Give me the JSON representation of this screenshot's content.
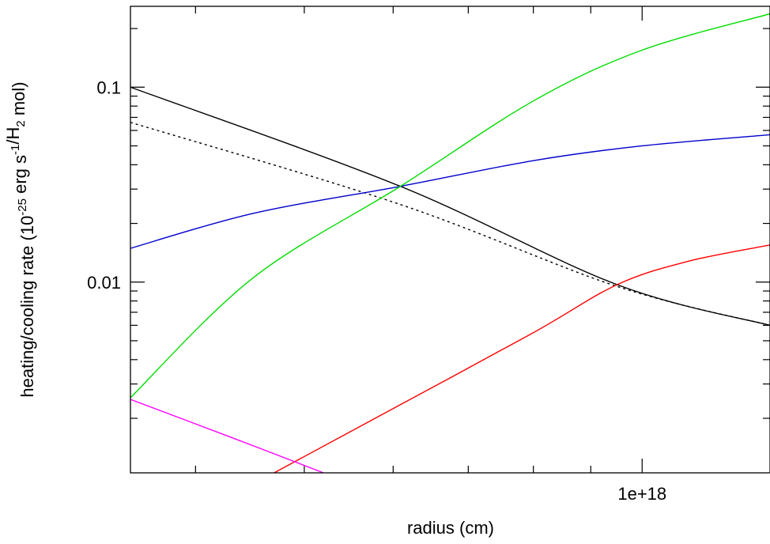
{
  "chart_data": {
    "type": "line",
    "x_scale": "log",
    "y_scale": "log",
    "xlabel": "radius (cm)",
    "ylabel": {
      "parts": [
        {
          "text": "heating/cooling rate (10",
          "baseline": "normal"
        },
        {
          "text": "-25",
          "baseline": "super"
        },
        {
          "text": " erg s",
          "baseline": "normal"
        },
        {
          "text": "-1",
          "baseline": "super"
        },
        {
          "text": "/H",
          "baseline": "normal"
        },
        {
          "text": "2",
          "baseline": "sub"
        },
        {
          "text": " mol)",
          "baseline": "normal"
        }
      ]
    },
    "xlim": [
      3.5e+17,
      1.3e+18
    ],
    "ylim": [
      0.00105,
      0.26
    ],
    "x_major_ticks": [
      {
        "value": 1e+18,
        "label": "1e+18"
      }
    ],
    "x_minor_ticks": [
      4e+17,
      5e+17,
      6e+17,
      7e+17,
      8e+17,
      9e+17
    ],
    "y_major_ticks": [
      {
        "value": 0.1,
        "label": "0.1"
      },
      {
        "value": 0.01,
        "label": "0.01"
      }
    ],
    "y_minor_ticks": [
      0.002,
      0.003,
      0.004,
      0.005,
      0.006,
      0.007,
      0.008,
      0.009,
      0.02,
      0.03,
      0.04,
      0.05,
      0.06,
      0.07,
      0.08,
      0.09,
      0.2
    ],
    "grid": false,
    "legend": "none",
    "series": [
      {
        "color": "#000000",
        "dash": "solid",
        "points": [
          [
            3.5e+17,
            0.1
          ],
          [
            6.09e+17,
            0.031
          ],
          [
            9.5e+17,
            0.0097
          ],
          [
            1.3e+18,
            0.006
          ]
        ]
      },
      {
        "color": "#000000",
        "dash": "dotted",
        "points": [
          [
            3.5e+17,
            0.066
          ],
          [
            6.09e+17,
            0.025
          ],
          [
            9.5e+17,
            0.0095
          ],
          [
            1.3e+18,
            0.006
          ]
        ]
      },
      {
        "color": "#0000cc",
        "dash": "solid",
        "points": [
          [
            3.5e+17,
            0.0149
          ],
          [
            4.5e+17,
            0.0225
          ],
          [
            6.09e+17,
            0.031
          ],
          [
            8e+17,
            0.042
          ],
          [
            1e+18,
            0.05
          ],
          [
            1.3e+18,
            0.057
          ]
        ]
      },
      {
        "color": "#00dd00",
        "dash": "solid",
        "points": [
          [
            3.5e+17,
            0.00255
          ],
          [
            4.5e+17,
            0.0105
          ],
          [
            6.09e+17,
            0.031
          ],
          [
            8e+17,
            0.085
          ],
          [
            1e+18,
            0.155
          ],
          [
            1.3e+18,
            0.238
          ]
        ]
      },
      {
        "color": "#ff0000",
        "dash": "solid",
        "points": [
          [
            4.7e+17,
            0.00105
          ],
          [
            6.09e+17,
            0.00235
          ],
          [
            8e+17,
            0.0055
          ],
          [
            9.5e+17,
            0.0097
          ],
          [
            1.1e+18,
            0.0128
          ],
          [
            1.3e+18,
            0.0155
          ]
        ]
      },
      {
        "color": "#ff00ff",
        "dash": "solid",
        "points": [
          [
            3.5e+17,
            0.0025
          ],
          [
            4.3e+17,
            0.0016
          ],
          [
            5.2e+17,
            0.00105
          ]
        ]
      }
    ]
  }
}
